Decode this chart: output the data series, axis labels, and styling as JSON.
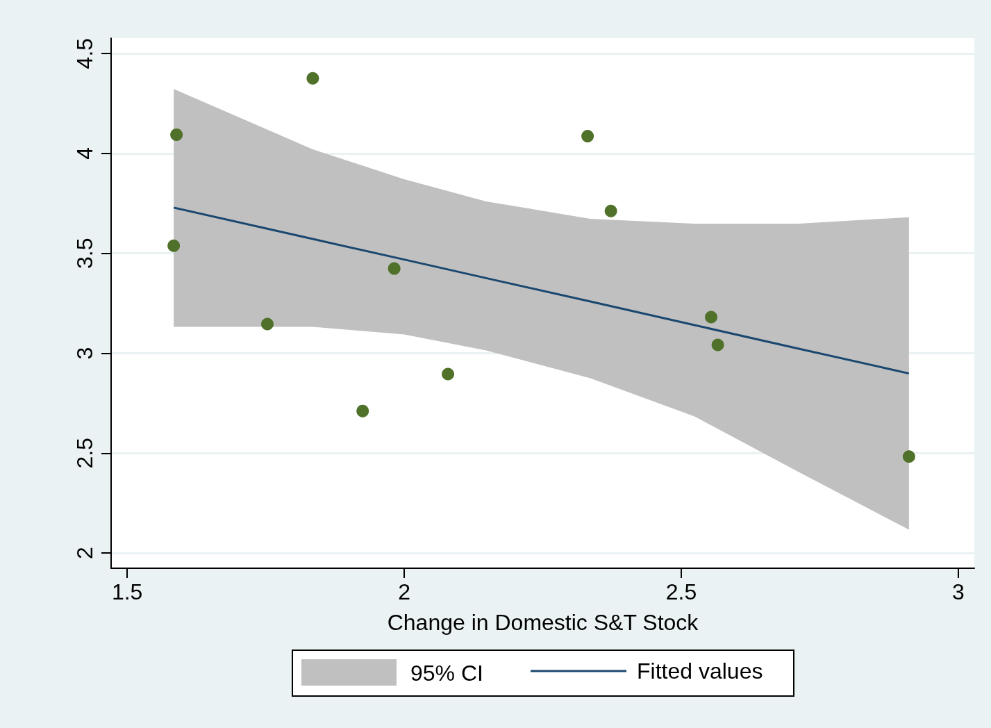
{
  "chart_data": {
    "type": "scatter",
    "xlabel": "Change in Domestic S&T Stock",
    "xlim": [
      1.471,
      3.029
    ],
    "ylim": [
      1.924,
      4.577
    ],
    "xticks": [
      1.5,
      2,
      2.5,
      3
    ],
    "yticks": [
      2,
      2.5,
      3,
      3.5,
      4,
      4.5
    ],
    "grid": "y",
    "legend": "bottom",
    "annotations": [
      "95% CI"
    ],
    "series": [
      {
        "type": "line",
        "name": "Fitted values",
        "color": "#1a476f",
        "marker": "none",
        "x": [
          1.584,
          1.835,
          2.0,
          2.148,
          2.336,
          2.524,
          2.712,
          2.911
        ],
        "values": [
          3.729,
          3.572,
          3.469,
          3.376,
          3.259,
          3.141,
          3.023,
          2.899
        ],
        "lower": [
          3.132,
          3.132,
          3.094,
          3.014,
          2.875,
          2.684,
          2.406,
          2.117
        ],
        "upper": [
          4.323,
          4.021,
          3.871,
          3.76,
          3.673,
          3.649,
          3.649,
          3.681
        ]
      },
      {
        "color": "#4f7129",
        "marker": "circle",
        "x": [
          1.589,
          1.835,
          1.584,
          1.753,
          1.925,
          1.982,
          2.079,
          2.331,
          2.373,
          2.554,
          2.566,
          2.911
        ],
        "values": [
          4.094,
          4.376,
          3.538,
          3.146,
          2.711,
          3.424,
          2.896,
          4.087,
          3.712,
          3.181,
          3.042,
          2.483
        ]
      }
    ]
  }
}
